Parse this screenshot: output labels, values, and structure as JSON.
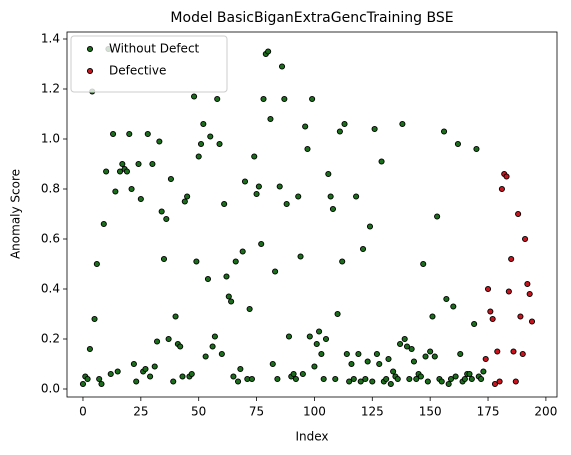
{
  "chart_data": {
    "type": "scatter",
    "title": "Model BasicBiganExtraGencTraining BSE",
    "x_label": "Index",
    "y_label": "Anomaly Score",
    "xlim": [
      -6.9,
      204.8
    ],
    "ylim": [
      -0.032,
      1.428
    ],
    "xticks": [
      0,
      25,
      50,
      75,
      100,
      125,
      150,
      175,
      200
    ],
    "yticks": [
      {
        "value": 0,
        "label": "0.0"
      },
      0.2,
      0.4,
      0.6,
      0.8,
      {
        "value": 1,
        "label": "1.0"
      },
      1.2,
      1.4
    ],
    "legend": "upper left",
    "grid": false,
    "series": [
      {
        "name": "Without Defect",
        "color": "#1b6e1b",
        "x": [
          0,
          1,
          2,
          3,
          4,
          5,
          6,
          7,
          8,
          9,
          10,
          11,
          12,
          13,
          14,
          15,
          16,
          17,
          18,
          19,
          20,
          21,
          22,
          23,
          24,
          25,
          26,
          27,
          28,
          29,
          30,
          31,
          32,
          33,
          34,
          35,
          36,
          37,
          38,
          39,
          40,
          41,
          42,
          43,
          44,
          45,
          46,
          47,
          48,
          49,
          50,
          51,
          52,
          53,
          54,
          55,
          56,
          57,
          58,
          59,
          60,
          61,
          62,
          63,
          64,
          65,
          66,
          67,
          68,
          69,
          70,
          71,
          72,
          73,
          74,
          75,
          76,
          77,
          78,
          79,
          80,
          81,
          82,
          83,
          84,
          85,
          86,
          87,
          88,
          89,
          90,
          91,
          92,
          93,
          94,
          95,
          96,
          97,
          98,
          99,
          100,
          101,
          102,
          103,
          104,
          105,
          106,
          107,
          108,
          109,
          110,
          111,
          112,
          113,
          114,
          115,
          116,
          117,
          118,
          119,
          120,
          121,
          122,
          123,
          124,
          125,
          126,
          127,
          128,
          129,
          130,
          131,
          132,
          133,
          134,
          135,
          136,
          137,
          138,
          139,
          140,
          141,
          142,
          143,
          144,
          145,
          146,
          147,
          148,
          149,
          150,
          151,
          152,
          153,
          154,
          155,
          156,
          157,
          158,
          159,
          160,
          161,
          162,
          163,
          164,
          165,
          166,
          167,
          168,
          169,
          170,
          171,
          172,
          173
        ],
        "values": [
          0.02,
          0.05,
          0.04,
          0.16,
          1.19,
          0.28,
          0.5,
          0.04,
          0.02,
          0.66,
          0.87,
          1.36,
          0.06,
          1.02,
          0.79,
          0.07,
          0.87,
          0.9,
          0.88,
          0.87,
          1.02,
          0.8,
          0.1,
          0.03,
          0.9,
          0.76,
          0.07,
          0.08,
          1.02,
          0.05,
          0.9,
          0.09,
          0.19,
          0.99,
          0.71,
          0.52,
          0.68,
          0.2,
          0.84,
          0.03,
          0.29,
          0.18,
          0.17,
          0.05,
          0.75,
          0.77,
          0.05,
          0.06,
          1.17,
          0.51,
          0.93,
          0.98,
          1.06,
          0.13,
          0.44,
          1.01,
          0.17,
          0.21,
          1.16,
          0.98,
          0.14,
          0.74,
          0.45,
          0.37,
          0.35,
          0.05,
          0.51,
          0.03,
          0.08,
          0.55,
          0.83,
          0.04,
          0.32,
          0.04,
          0.93,
          0.78,
          0.81,
          0.58,
          1.16,
          1.34,
          1.35,
          1.08,
          0.1,
          0.47,
          0.04,
          0.81,
          1.29,
          1.16,
          0.74,
          0.21,
          0.05,
          0.06,
          0.04,
          0.77,
          0.53,
          0.06,
          1.05,
          0.96,
          0.21,
          1.16,
          0.09,
          0.18,
          0.23,
          0.14,
          0.04,
          0.2,
          0.86,
          0.77,
          0.72,
          0.04,
          0.3,
          1.03,
          0.51,
          1.06,
          0.14,
          0.03,
          0.1,
          0.04,
          0.77,
          0.14,
          0.03,
          0.56,
          0.04,
          0.11,
          0.65,
          0.03,
          1.04,
          0.14,
          0.1,
          0.91,
          0.03,
          0.04,
          0.12,
          0.02,
          0.07,
          0.05,
          0.04,
          0.18,
          1.06,
          0.2,
          0.17,
          0.04,
          0.16,
          0.11,
          0.04,
          0.06,
          0.05,
          0.5,
          0.13,
          0.03,
          0.15,
          0.29,
          0.13,
          0.69,
          0.04,
          0.03,
          1.03,
          0.36,
          0.02,
          0.04,
          0.33,
          0.05,
          0.98,
          0.14,
          0.03,
          0.04,
          0.06,
          0.06,
          0.04,
          0.26,
          0.96,
          0.05,
          0.04,
          0.07
        ]
      },
      {
        "name": "Defective",
        "color": "#c8141e",
        "x": [
          174,
          175,
          176,
          177,
          178,
          179,
          180,
          181,
          182,
          183,
          184,
          185,
          186,
          187,
          188,
          189,
          190,
          191,
          192,
          193,
          194
        ],
        "values": [
          0.12,
          0.4,
          0.31,
          0.28,
          0.02,
          0.15,
          0.03,
          0.8,
          0.86,
          0.85,
          0.39,
          0.52,
          0.15,
          0.03,
          0.7,
          0.29,
          0.14,
          0.6,
          0.42,
          0.38,
          0.27
        ]
      }
    ]
  }
}
